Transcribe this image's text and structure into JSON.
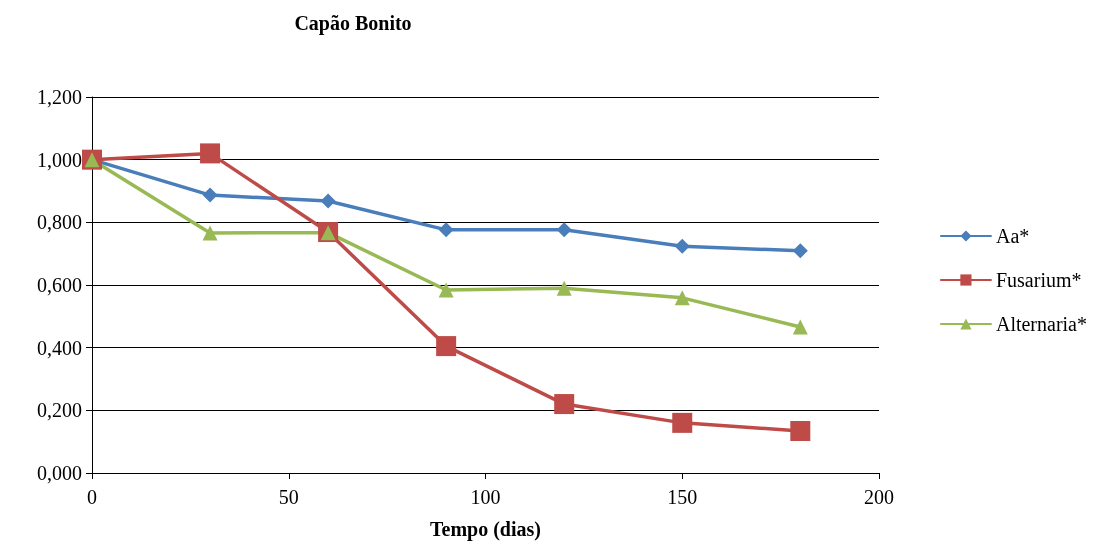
{
  "chart_data": {
    "type": "line",
    "title": "Capão Bonito",
    "xlabel": "Tempo (dias)",
    "xlim": [
      0,
      200
    ],
    "xticks": [
      0,
      50,
      100,
      150,
      200
    ],
    "ylim": [
      0,
      1.2
    ],
    "yticks": [
      {
        "value": 0,
        "label": "0,000"
      },
      {
        "value": 0.2,
        "label": "0,200"
      },
      {
        "value": 0.4,
        "label": "0,400"
      },
      {
        "value": 0.6,
        "label": "0,600"
      },
      {
        "value": 0.8,
        "label": "0,800"
      },
      {
        "value": 1,
        "label": "1,000"
      },
      {
        "value": 1.2,
        "label": "1,200"
      }
    ],
    "grid": "y",
    "legend": "right",
    "x": [
      0,
      30,
      60,
      90,
      120,
      150,
      180
    ],
    "series": [
      {
        "name": "Aa*",
        "color": "#4a7ebb",
        "marker": "diamond",
        "values": [
          1.0,
          0.887,
          0.868,
          0.776,
          0.776,
          0.724,
          0.709
        ]
      },
      {
        "name": "Fusarium*",
        "color": "#be4b48",
        "marker": "square",
        "values": [
          1.0,
          1.02,
          0.769,
          0.405,
          0.22,
          0.16,
          0.134
        ]
      },
      {
        "name": "Alternaria*",
        "color": "#98b954",
        "marker": "triangle",
        "values": [
          1.0,
          0.766,
          0.767,
          0.584,
          0.59,
          0.559,
          0.466
        ]
      }
    ]
  }
}
